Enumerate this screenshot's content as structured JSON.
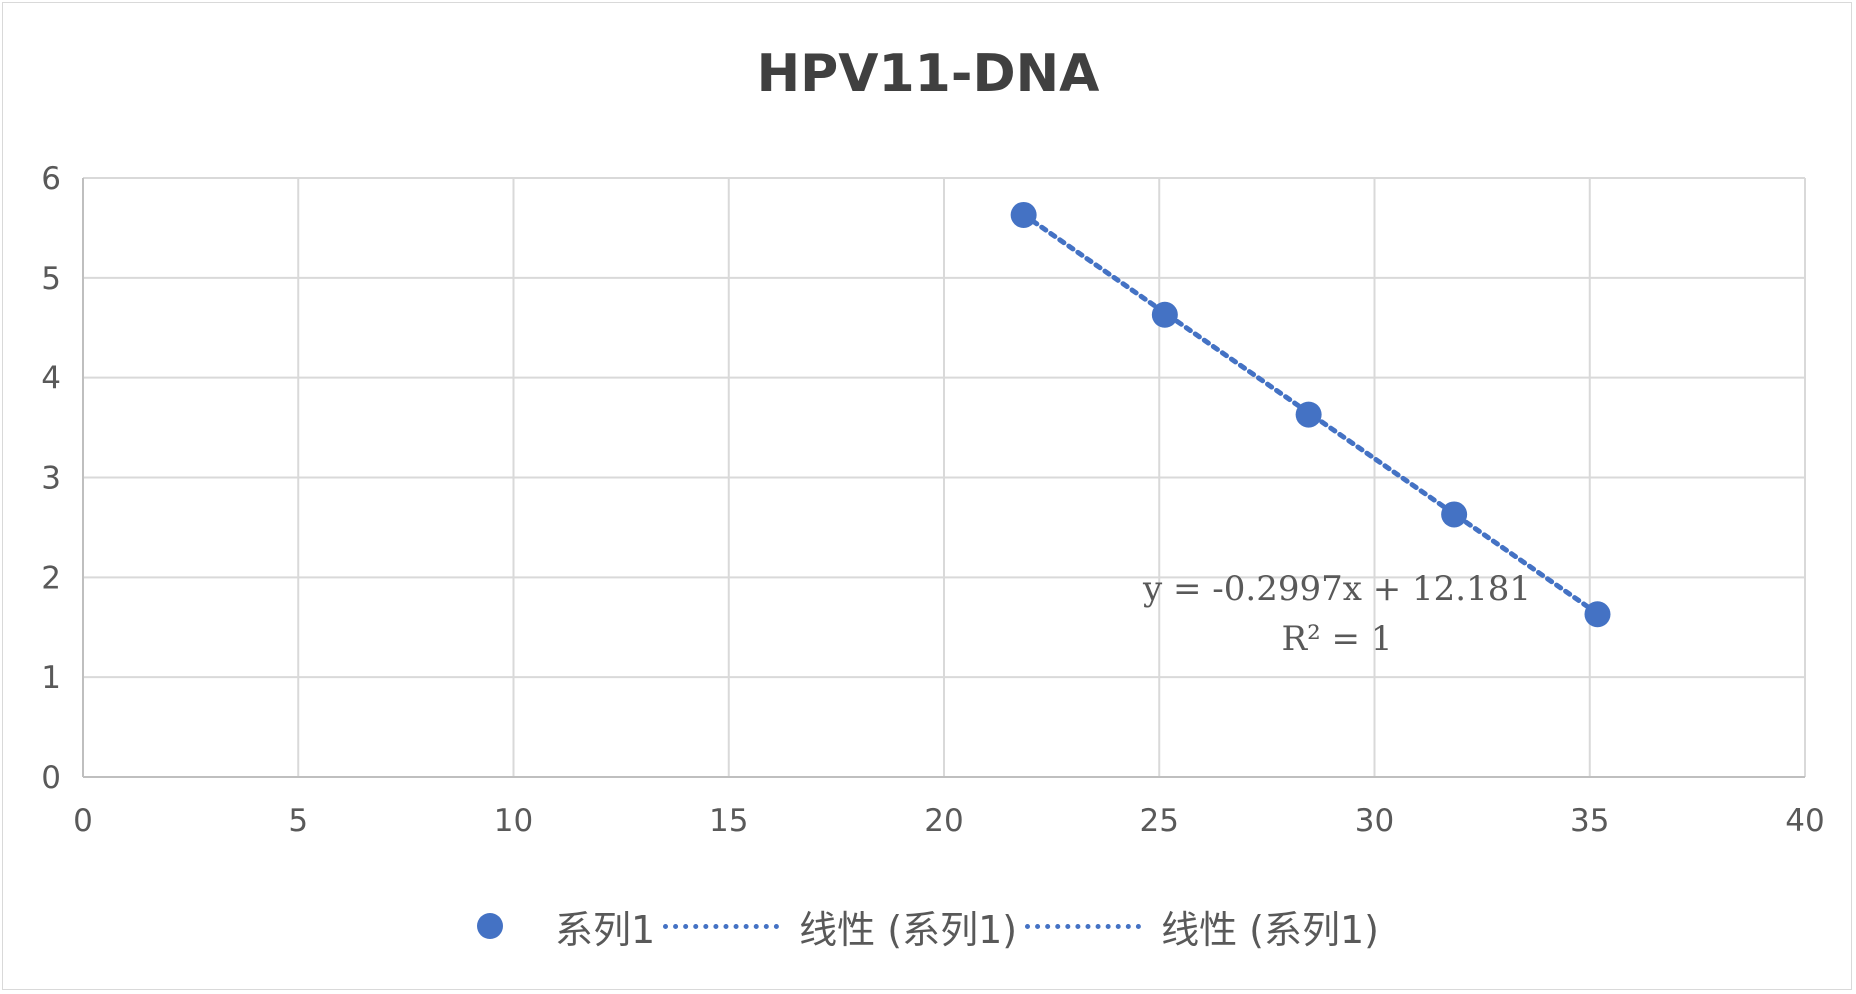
{
  "chart_data": {
    "type": "scatter",
    "title": "HPV11-DNA",
    "xlabel": "",
    "ylabel": "",
    "xlim": [
      0,
      40
    ],
    "ylim": [
      0,
      6
    ],
    "x_ticks": [
      "0",
      "5",
      "10",
      "15",
      "20",
      "25",
      "30",
      "35",
      "40"
    ],
    "y_ticks": [
      "0",
      "1",
      "2",
      "3",
      "4",
      "5",
      "6"
    ],
    "grid": true,
    "series": [
      {
        "name": "系列1",
        "x": [
          21.85,
          25.13,
          28.47,
          31.85,
          35.18
        ],
        "y": [
          5.63,
          4.63,
          3.63,
          2.63,
          1.63
        ],
        "color": "#4472c4",
        "marker": "circle"
      }
    ],
    "trendline": {
      "type": "linear",
      "slope": -0.2997,
      "intercept": 12.181,
      "equation_text": "y = -0.2997x + 12.181",
      "r2_text": "R² = 1",
      "style": "dotted",
      "color": "#4472c4"
    },
    "legend": {
      "position": "bottom",
      "entries": [
        "系列1",
        "线性 (系列1)",
        "线性 (系列1)"
      ]
    }
  }
}
